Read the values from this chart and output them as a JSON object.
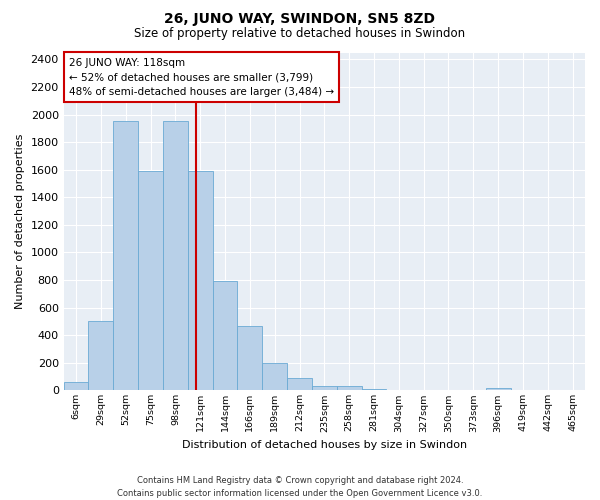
{
  "title": "26, JUNO WAY, SWINDON, SN5 8ZD",
  "subtitle": "Size of property relative to detached houses in Swindon",
  "xlabel": "Distribution of detached houses by size in Swindon",
  "ylabel": "Number of detached properties",
  "footer_line1": "Contains HM Land Registry data © Crown copyright and database right 2024.",
  "footer_line2": "Contains public sector information licensed under the Open Government Licence v3.0.",
  "bar_labels": [
    "6sqm",
    "29sqm",
    "52sqm",
    "75sqm",
    "98sqm",
    "121sqm",
    "144sqm",
    "166sqm",
    "189sqm",
    "212sqm",
    "235sqm",
    "258sqm",
    "281sqm",
    "304sqm",
    "327sqm",
    "350sqm",
    "373sqm",
    "396sqm",
    "419sqm",
    "442sqm",
    "465sqm"
  ],
  "bar_heights": [
    60,
    500,
    1950,
    1590,
    1950,
    1590,
    790,
    470,
    195,
    90,
    35,
    30,
    10,
    5,
    5,
    5,
    5,
    20,
    0,
    0,
    0
  ],
  "bar_color": "#b8d0e8",
  "bar_edge_color": "#6aaad4",
  "background_color": "#e8eef5",
  "grid_color": "#ffffff",
  "ylim": [
    0,
    2450
  ],
  "yticks": [
    0,
    200,
    400,
    600,
    800,
    1000,
    1200,
    1400,
    1600,
    1800,
    2000,
    2200,
    2400
  ],
  "property_label": "26 JUNO WAY: 118sqm",
  "annotation_line1": "← 52% of detached houses are smaller (3,799)",
  "annotation_line2": "48% of semi-detached houses are larger (3,484) →",
  "vline_bin_index": 4.82,
  "vline_color": "#cc0000",
  "annotation_box_color": "#ffffff",
  "annotation_box_edge": "#cc0000",
  "fig_width": 6.0,
  "fig_height": 5.0,
  "fig_bg": "#ffffff"
}
